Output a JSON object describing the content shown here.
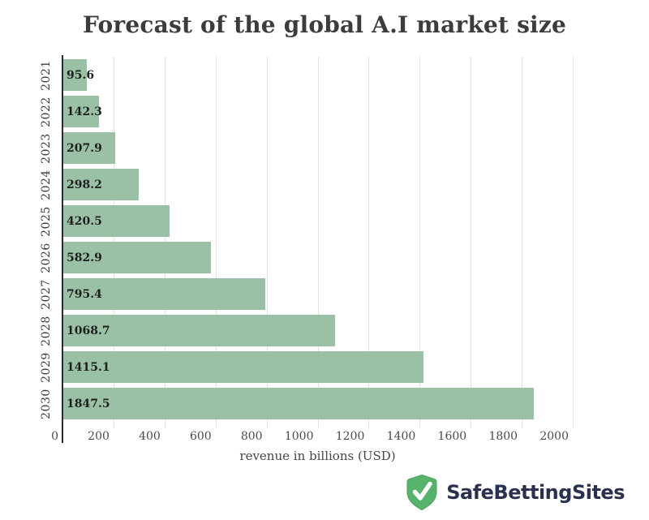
{
  "chart_data": {
    "type": "bar",
    "orientation": "horizontal",
    "title": "Forecast of the global A.I market size",
    "xlabel": "revenue in billions (USD)",
    "ylabel": "",
    "categories": [
      "2021",
      "2022",
      "2023",
      "2024",
      "2025",
      "2026",
      "2027",
      "2028",
      "2029",
      "2030"
    ],
    "values": [
      95.6,
      142.3,
      207.9,
      298.2,
      420.5,
      582.9,
      795.4,
      1068.7,
      1415.1,
      1847.5
    ],
    "xlim": [
      0,
      2000
    ],
    "xticks": [
      0,
      200,
      400,
      600,
      800,
      1000,
      1200,
      1400,
      1600,
      1800,
      2000
    ],
    "grid": true,
    "legend": "none",
    "bar_color": "#9ac1a5",
    "gridline_color": "#e3e3e3",
    "axis_line_color": "#2b2b2b",
    "value_label_color": "#1f1f1f",
    "title_color": "#3c3c3c"
  },
  "branding": {
    "logo_text": "SafeBettingSites",
    "shield_color": "#57b26b",
    "shield_border_color": "#4aa35f",
    "check_color": "#ffffff",
    "text_color": "#2a3150"
  }
}
